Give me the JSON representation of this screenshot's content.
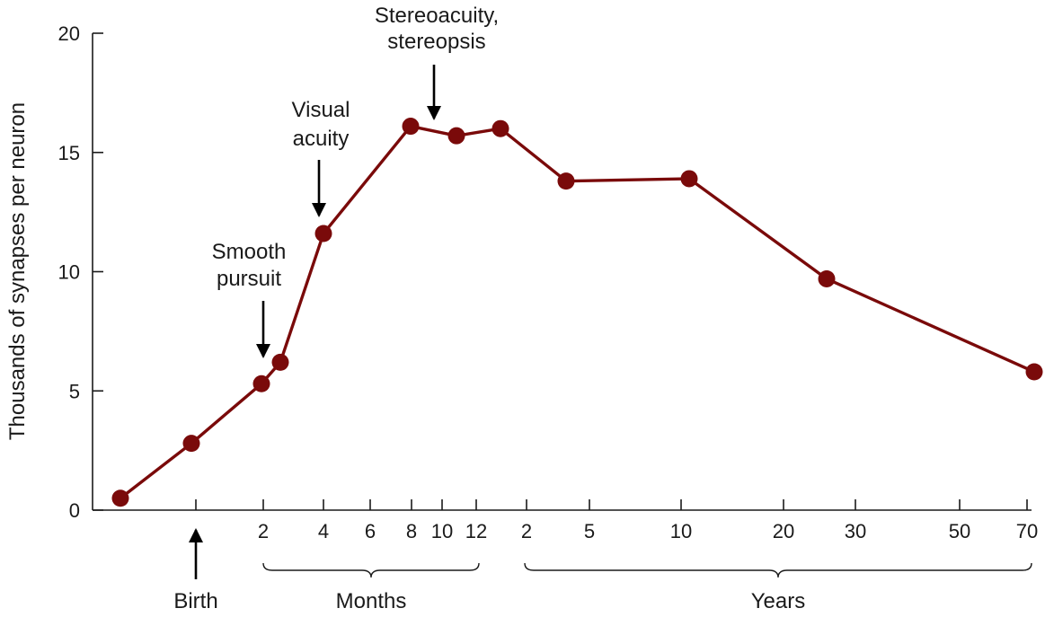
{
  "chart_data": {
    "type": "line",
    "title": "",
    "ylabel": "Thousands of synapses per neuron",
    "xlabel": "",
    "ylim": [
      0,
      20
    ],
    "y_ticks": [
      "0",
      "5",
      "10",
      "15",
      "20"
    ],
    "grid": false,
    "legend": "none",
    "x_tick_labels": [
      "2",
      "4",
      "6",
      "8",
      "10",
      "12",
      "2",
      "5",
      "10",
      "20",
      "30",
      "50",
      "70"
    ],
    "x_groups": [
      {
        "label": "Months"
      },
      {
        "label": "Years"
      }
    ],
    "series": [
      {
        "color": "#7a0a0a",
        "points": [
          {
            "x": "prenatal",
            "y": 0.5
          },
          {
            "x": "Birth",
            "y": 2.8
          },
          {
            "x": "2 months",
            "y": 5.3
          },
          {
            "x": "2.5 months",
            "y": 6.2
          },
          {
            "x": "4 months",
            "y": 11.6
          },
          {
            "x": "8 months",
            "y": 16.1
          },
          {
            "x": "11 months",
            "y": 15.7
          },
          {
            "x": "14 months",
            "y": 16.0
          },
          {
            "x": "4 years",
            "y": 13.8
          },
          {
            "x": "11 years",
            "y": 13.9
          },
          {
            "x": "26 years",
            "y": 9.7
          },
          {
            "x": "71 years",
            "y": 5.8
          }
        ]
      }
    ],
    "annotations": [
      {
        "id": "birth",
        "lines": [
          "Birth"
        ]
      },
      {
        "id": "smooth",
        "lines": [
          "Smooth",
          "pursuit"
        ]
      },
      {
        "id": "visual",
        "lines": [
          "Visual",
          "acuity"
        ]
      },
      {
        "id": "stereo",
        "lines": [
          "Stereoacuity,",
          "stereopsis"
        ]
      }
    ]
  }
}
